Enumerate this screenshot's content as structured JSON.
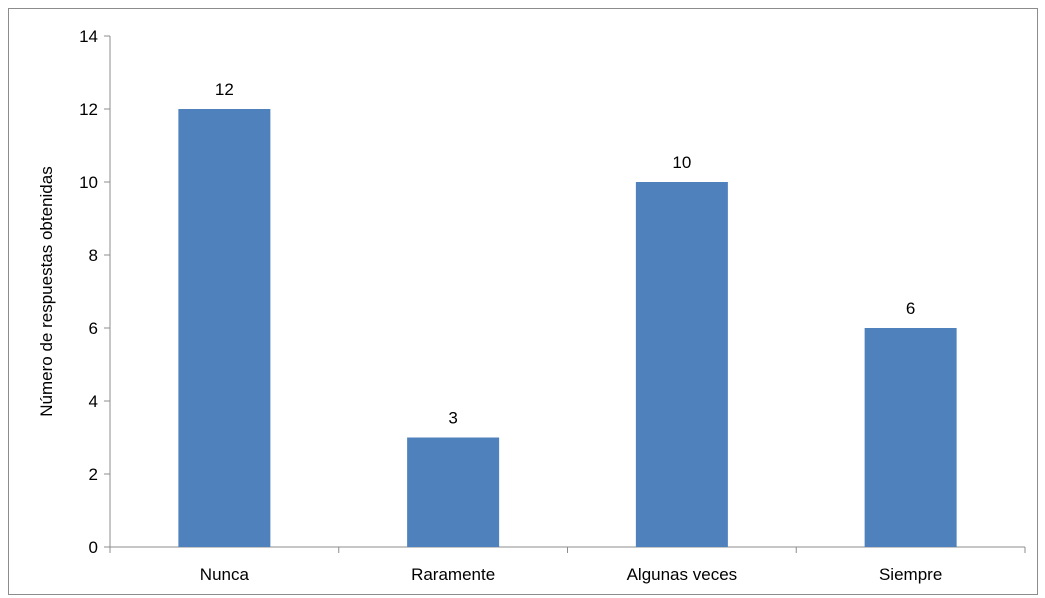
{
  "chart_data": {
    "type": "bar",
    "categories": [
      "Nunca",
      "Raramente",
      "Algunas veces",
      "Siempre"
    ],
    "values": [
      12,
      3,
      10,
      6
    ],
    "data_labels": [
      "12",
      "3",
      "10",
      "6"
    ],
    "title": "",
    "xlabel": "",
    "ylabel": "Número de respuestas obtenidas",
    "ylim": [
      0,
      14
    ],
    "yticks": [
      "0",
      "2",
      "4",
      "6",
      "8",
      "10",
      "12",
      "14"
    ],
    "grid": false,
    "legend": "none",
    "bar_color": "#4f81bd"
  }
}
